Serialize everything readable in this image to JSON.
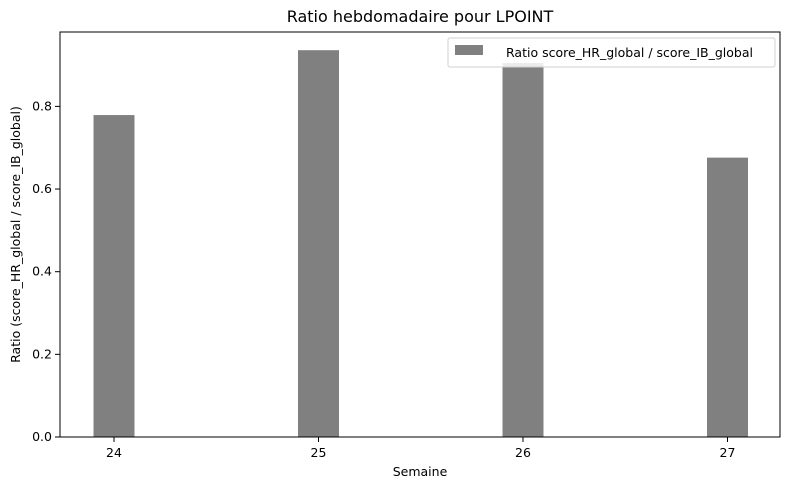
{
  "chart_data": {
    "type": "bar",
    "title": "Ratio hebdomadaire pour LPOINT",
    "xlabel": "Semaine",
    "ylabel": "Ratio (score_HR_global / score_IB_global)",
    "categories": [
      "24",
      "25",
      "26",
      "27"
    ],
    "series": [
      {
        "name": "Ratio score_HR_global / score_IB_global",
        "values": [
          0.779,
          0.936,
          0.905,
          0.676
        ],
        "color": "#808080"
      }
    ],
    "ylim": [
      0,
      0.98
    ],
    "yticks": [
      "0.0",
      "0.2",
      "0.4",
      "0.6",
      "0.8"
    ],
    "grid": false,
    "legend_position": "top-right"
  }
}
